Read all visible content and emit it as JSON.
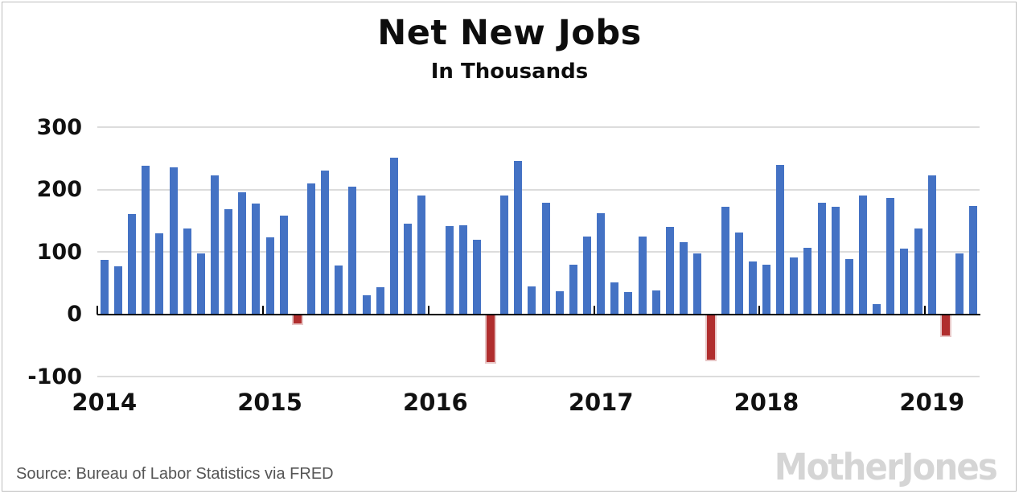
{
  "title": "Net New Jobs",
  "subtitle": "In Thousands",
  "source": "Source: Bureau of Labor Statistics via FRED",
  "brand": "MotherJones",
  "colors": {
    "positive_bar": "#4472c4",
    "negative_bar_fill": "#b02e2e",
    "negative_bar_stroke": "#e8c6c6",
    "gridline": "#dcdcdc",
    "axis": "#000000",
    "tick_label": "#111111",
    "source_text": "#555555",
    "brand_text": "#d5d5d5",
    "background": "#ffffff"
  },
  "chart_data": {
    "type": "bar",
    "title": "Net New Jobs",
    "subtitle": "In Thousands",
    "unit": "thousands of jobs per month",
    "grid": "horizontal",
    "ylim": [
      -100,
      300
    ],
    "yticks": [
      300,
      200,
      100,
      0,
      -100
    ],
    "xtick_labels": [
      "2014",
      "2015",
      "2016",
      "2017",
      "2018",
      "2019"
    ],
    "negative_months_drawn_red": true,
    "missing_months": [
      "2016-01"
    ],
    "months": [
      "2014-01",
      "2014-02",
      "2014-03",
      "2014-04",
      "2014-05",
      "2014-06",
      "2014-07",
      "2014-08",
      "2014-09",
      "2014-10",
      "2014-11",
      "2014-12",
      "2015-01",
      "2015-02",
      "2015-03",
      "2015-04",
      "2015-05",
      "2015-06",
      "2015-07",
      "2015-08",
      "2015-09",
      "2015-10",
      "2015-11",
      "2015-12",
      "2016-01",
      "2016-02",
      "2016-03",
      "2016-04",
      "2016-05",
      "2016-06",
      "2016-07",
      "2016-08",
      "2016-09",
      "2016-10",
      "2016-11",
      "2016-12",
      "2017-01",
      "2017-02",
      "2017-03",
      "2017-04",
      "2017-05",
      "2017-06",
      "2017-07",
      "2017-08",
      "2017-09",
      "2017-10",
      "2017-11",
      "2017-12",
      "2018-01",
      "2018-02",
      "2018-03",
      "2018-04",
      "2018-05",
      "2018-06",
      "2018-07",
      "2018-08",
      "2018-09",
      "2018-10",
      "2018-11",
      "2018-12",
      "2019-01",
      "2019-02",
      "2019-03",
      "2019-04"
    ],
    "values": [
      87,
      77,
      161,
      238,
      130,
      236,
      138,
      97,
      223,
      169,
      196,
      178,
      123,
      158,
      -14,
      210,
      230,
      78,
      204,
      30,
      43,
      251,
      145,
      190,
      0,
      141,
      143,
      120,
      -75,
      190,
      246,
      44,
      179,
      37,
      79,
      124,
      162,
      51,
      36,
      124,
      38,
      140,
      115,
      97,
      -72,
      172,
      131,
      84,
      79,
      240,
      91,
      106,
      179,
      172,
      88,
      190,
      16,
      186,
      105,
      137,
      222,
      -33,
      98,
      173
    ]
  }
}
